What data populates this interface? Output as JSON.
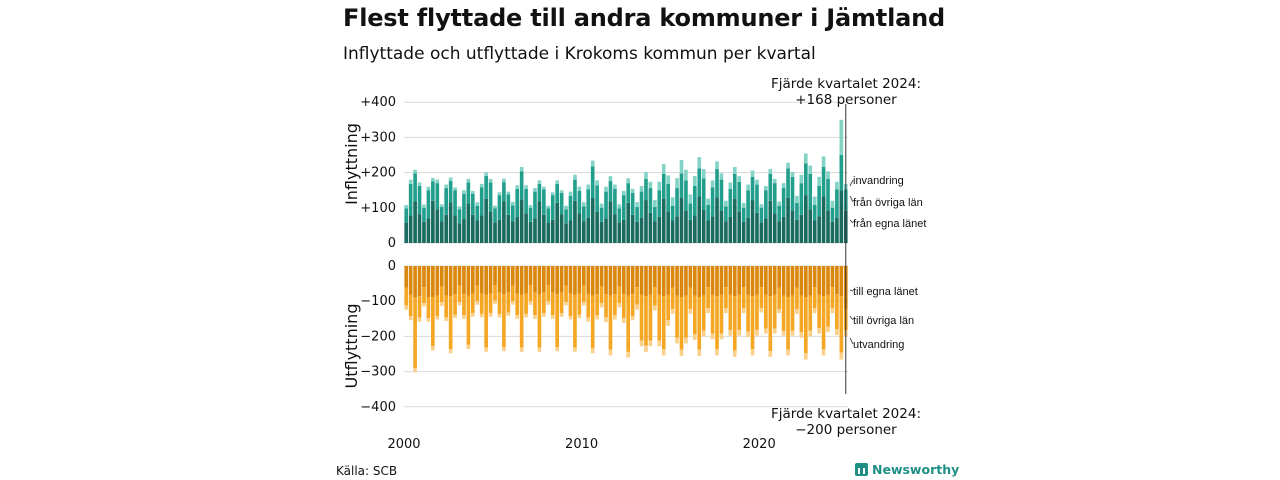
{
  "header": {
    "title": "Flest flyttade till andra kommuner i Jämtland",
    "subtitle": "Inflyttade och utflyttade i Krokoms kommun per kvartal"
  },
  "footer": {
    "source": "Källa: SCB",
    "brand": "Newsworthy"
  },
  "colors": {
    "in_own": "#1b6b5f",
    "in_other": "#229e8d",
    "in_immigration": "#83d3c6",
    "out_own": "#d9870e",
    "out_other": "#f5a623",
    "out_emigration": "#fbd08a"
  },
  "chart_data": {
    "type": "bar",
    "stacked": true,
    "x_range": [
      2000,
      2024.75
    ],
    "x_ticks": [
      "2000",
      "2010",
      "2020"
    ],
    "panels": [
      {
        "ylabel": "Inflyttning",
        "ylim": [
          0,
          400
        ],
        "y_ticks": [
          "+400",
          "+300",
          "+200",
          "+100",
          "0"
        ],
        "series_names": [
          "från egna länet",
          "från övriga län",
          "invandring"
        ],
        "annotation": "Fjärde kvartalet 2024:\n+168 personer"
      },
      {
        "ylabel": "Utflyttning",
        "ylim": [
          -400,
          0
        ],
        "y_ticks": [
          "0",
          "−100",
          "−200",
          "−300",
          "−400"
        ],
        "series_names": [
          "till egna länet",
          "till övriga län",
          "utvandring"
        ],
        "annotation": "Fjärde kvartalet 2024:\n−200 personer"
      }
    ],
    "quarters": [
      "2000K1",
      "2000K2",
      "2000K3",
      "2000K4",
      "2001K1",
      "2001K2",
      "2001K3",
      "2001K4",
      "2002K1",
      "2002K2",
      "2002K3",
      "2002K4",
      "2003K1",
      "2003K2",
      "2003K3",
      "2003K4",
      "2004K1",
      "2004K2",
      "2004K3",
      "2004K4",
      "2005K1",
      "2005K2",
      "2005K3",
      "2005K4",
      "2006K1",
      "2006K2",
      "2006K3",
      "2006K4",
      "2007K1",
      "2007K2",
      "2007K3",
      "2007K4",
      "2008K1",
      "2008K2",
      "2008K3",
      "2008K4",
      "2009K1",
      "2009K2",
      "2009K3",
      "2009K4",
      "2010K1",
      "2010K2",
      "2010K3",
      "2010K4",
      "2011K1",
      "2011K2",
      "2011K3",
      "2011K4",
      "2012K1",
      "2012K2",
      "2012K3",
      "2012K4",
      "2013K1",
      "2013K2",
      "2013K3",
      "2013K4",
      "2014K1",
      "2014K2",
      "2014K3",
      "2014K4",
      "2015K1",
      "2015K2",
      "2015K3",
      "2015K4",
      "2016K1",
      "2016K2",
      "2016K3",
      "2016K4",
      "2017K1",
      "2017K2",
      "2017K3",
      "2017K4",
      "2018K1",
      "2018K2",
      "2018K3",
      "2018K4",
      "2019K1",
      "2019K2",
      "2019K3",
      "2019K4",
      "2020K1",
      "2020K2",
      "2020K3",
      "2020K4",
      "2021K1",
      "2021K2",
      "2021K3",
      "2021K4",
      "2022K1",
      "2022K2",
      "2022K3",
      "2022K4",
      "2023K1",
      "2023K2",
      "2023K3",
      "2023K4",
      "2024K1",
      "2024K2",
      "2024K3",
      "2024K4"
    ],
    "inflow": {
      "own": [
        58,
        78,
        118,
        82,
        60,
        70,
        120,
        96,
        62,
        80,
        116,
        78,
        56,
        68,
        112,
        80,
        64,
        78,
        126,
        90,
        58,
        66,
        118,
        80,
        62,
        74,
        124,
        84,
        60,
        70,
        118,
        80,
        58,
        66,
        114,
        82,
        56,
        64,
        120,
        84,
        62,
        72,
        128,
        88,
        60,
        70,
        118,
        82,
        58,
        66,
        114,
        80,
        60,
        72,
        122,
        86,
        62,
        74,
        126,
        90,
        64,
        76,
        128,
        92,
        66,
        78,
        132,
        94,
        64,
        76,
        130,
        92,
        62,
        74,
        126,
        90,
        60,
        72,
        122,
        86,
        58,
        70,
        120,
        84,
        62,
        74,
        128,
        92,
        66,
        80,
        136,
        96,
        64,
        76,
        132,
        92,
        60,
        72,
        150,
        92
      ],
      "other": [
        40,
        90,
        80,
        80,
        40,
        80,
        55,
        74,
        40,
        76,
        60,
        72,
        40,
        72,
        60,
        60,
        42,
        80,
        65,
        82,
        40,
        70,
        55,
        58,
        45,
        80,
        80,
        70,
        40,
        76,
        50,
        72,
        40,
        70,
        54,
        60,
        40,
        70,
        60,
        64,
        42,
        80,
        90,
        76,
        40,
        76,
        58,
        72,
        40,
        70,
        56,
        62,
        42,
        74,
        60,
        70,
        40,
        76,
        70,
        78,
        42,
        80,
        70,
        86,
        46,
        84,
        80,
        90,
        44,
        82,
        80,
        88,
        42,
        80,
        70,
        84,
        40,
        78,
        66,
        80,
        42,
        80,
        76,
        86,
        44,
        82,
        84,
        96,
        48,
        90,
        90,
        100,
        44,
        86,
        84,
        90,
        40,
        80,
        100,
        60
      ],
      "imm": [
        10,
        12,
        10,
        10,
        9,
        10,
        10,
        10,
        8,
        10,
        10,
        8,
        8,
        10,
        10,
        8,
        10,
        10,
        10,
        10,
        8,
        8,
        10,
        8,
        10,
        10,
        12,
        10,
        8,
        10,
        10,
        8,
        8,
        8,
        10,
        8,
        10,
        12,
        14,
        12,
        12,
        14,
        16,
        14,
        12,
        14,
        14,
        12,
        12,
        12,
        14,
        12,
        14,
        16,
        20,
        18,
        20,
        24,
        28,
        24,
        24,
        28,
        38,
        30,
        26,
        28,
        32,
        26,
        18,
        20,
        22,
        18,
        16,
        18,
        20,
        16,
        14,
        16,
        18,
        14,
        10,
        12,
        14,
        12,
        12,
        14,
        16,
        14,
        20,
        24,
        28,
        24,
        24,
        26,
        30,
        22,
        20,
        22,
        100,
        16
      ]
    },
    "outflow": {
      "own": [
        62,
        82,
        90,
        86,
        60,
        88,
        88,
        84,
        58,
        84,
        86,
        80,
        56,
        80,
        84,
        78,
        56,
        78,
        82,
        78,
        54,
        76,
        80,
        76,
        56,
        78,
        82,
        78,
        54,
        76,
        82,
        76,
        54,
        76,
        80,
        76,
        56,
        78,
        82,
        78,
        56,
        80,
        84,
        80,
        58,
        80,
        84,
        80,
        58,
        80,
        84,
        80,
        60,
        82,
        86,
        82,
        60,
        82,
        86,
        82,
        62,
        84,
        88,
        84,
        62,
        84,
        88,
        84,
        60,
        82,
        86,
        82,
        60,
        82,
        86,
        82,
        60,
        82,
        86,
        82,
        60,
        82,
        86,
        82,
        62,
        84,
        88,
        84,
        62,
        84,
        88,
        84,
        60,
        82,
        86,
        82,
        60,
        80,
        86,
        122
      ],
      "other": [
        50,
        60,
        200,
        60,
        45,
        60,
        140,
        58,
        45,
        62,
        150,
        58,
        46,
        60,
        140,
        56,
        44,
        58,
        150,
        56,
        44,
        60,
        150,
        56,
        44,
        62,
        150,
        58,
        46,
        64,
        150,
        58,
        46,
        64,
        150,
        58,
        46,
        64,
        150,
        60,
        46,
        66,
        150,
        60,
        48,
        66,
        154,
        60,
        48,
        68,
        160,
        62,
        50,
        130,
        140,
        130,
        52,
        130,
        150,
        72,
        60,
        120,
        150,
        120,
        60,
        110,
        150,
        100,
        60,
        110,
        150,
        110,
        60,
        100,
        154,
        100,
        60,
        104,
        150,
        100,
        60,
        96,
        156,
        96,
        60,
        100,
        150,
        100,
        60,
        104,
        160,
        100,
        60,
        94,
        150,
        90,
        60,
        100,
        160,
        60
      ],
      "emi": [
        12,
        12,
        12,
        12,
        10,
        10,
        12,
        10,
        10,
        10,
        12,
        10,
        10,
        10,
        12,
        10,
        10,
        10,
        12,
        10,
        10,
        10,
        12,
        10,
        10,
        10,
        12,
        10,
        10,
        10,
        12,
        10,
        10,
        10,
        12,
        10,
        10,
        10,
        12,
        10,
        10,
        12,
        14,
        12,
        12,
        14,
        16,
        12,
        12,
        14,
        16,
        12,
        14,
        16,
        18,
        16,
        14,
        16,
        18,
        16,
        14,
        16,
        18,
        16,
        14,
        16,
        18,
        16,
        14,
        16,
        18,
        16,
        14,
        16,
        18,
        16,
        14,
        16,
        18,
        16,
        12,
        14,
        16,
        14,
        12,
        14,
        16,
        14,
        14,
        16,
        18,
        16,
        14,
        16,
        18,
        16,
        14,
        16,
        20,
        18
      ]
    },
    "legend": {
      "inflow": [
        "invandring",
        "från övriga län",
        "från egna länet"
      ],
      "outflow": [
        "till egna länet",
        "till övriga län",
        "utvandring"
      ]
    }
  }
}
